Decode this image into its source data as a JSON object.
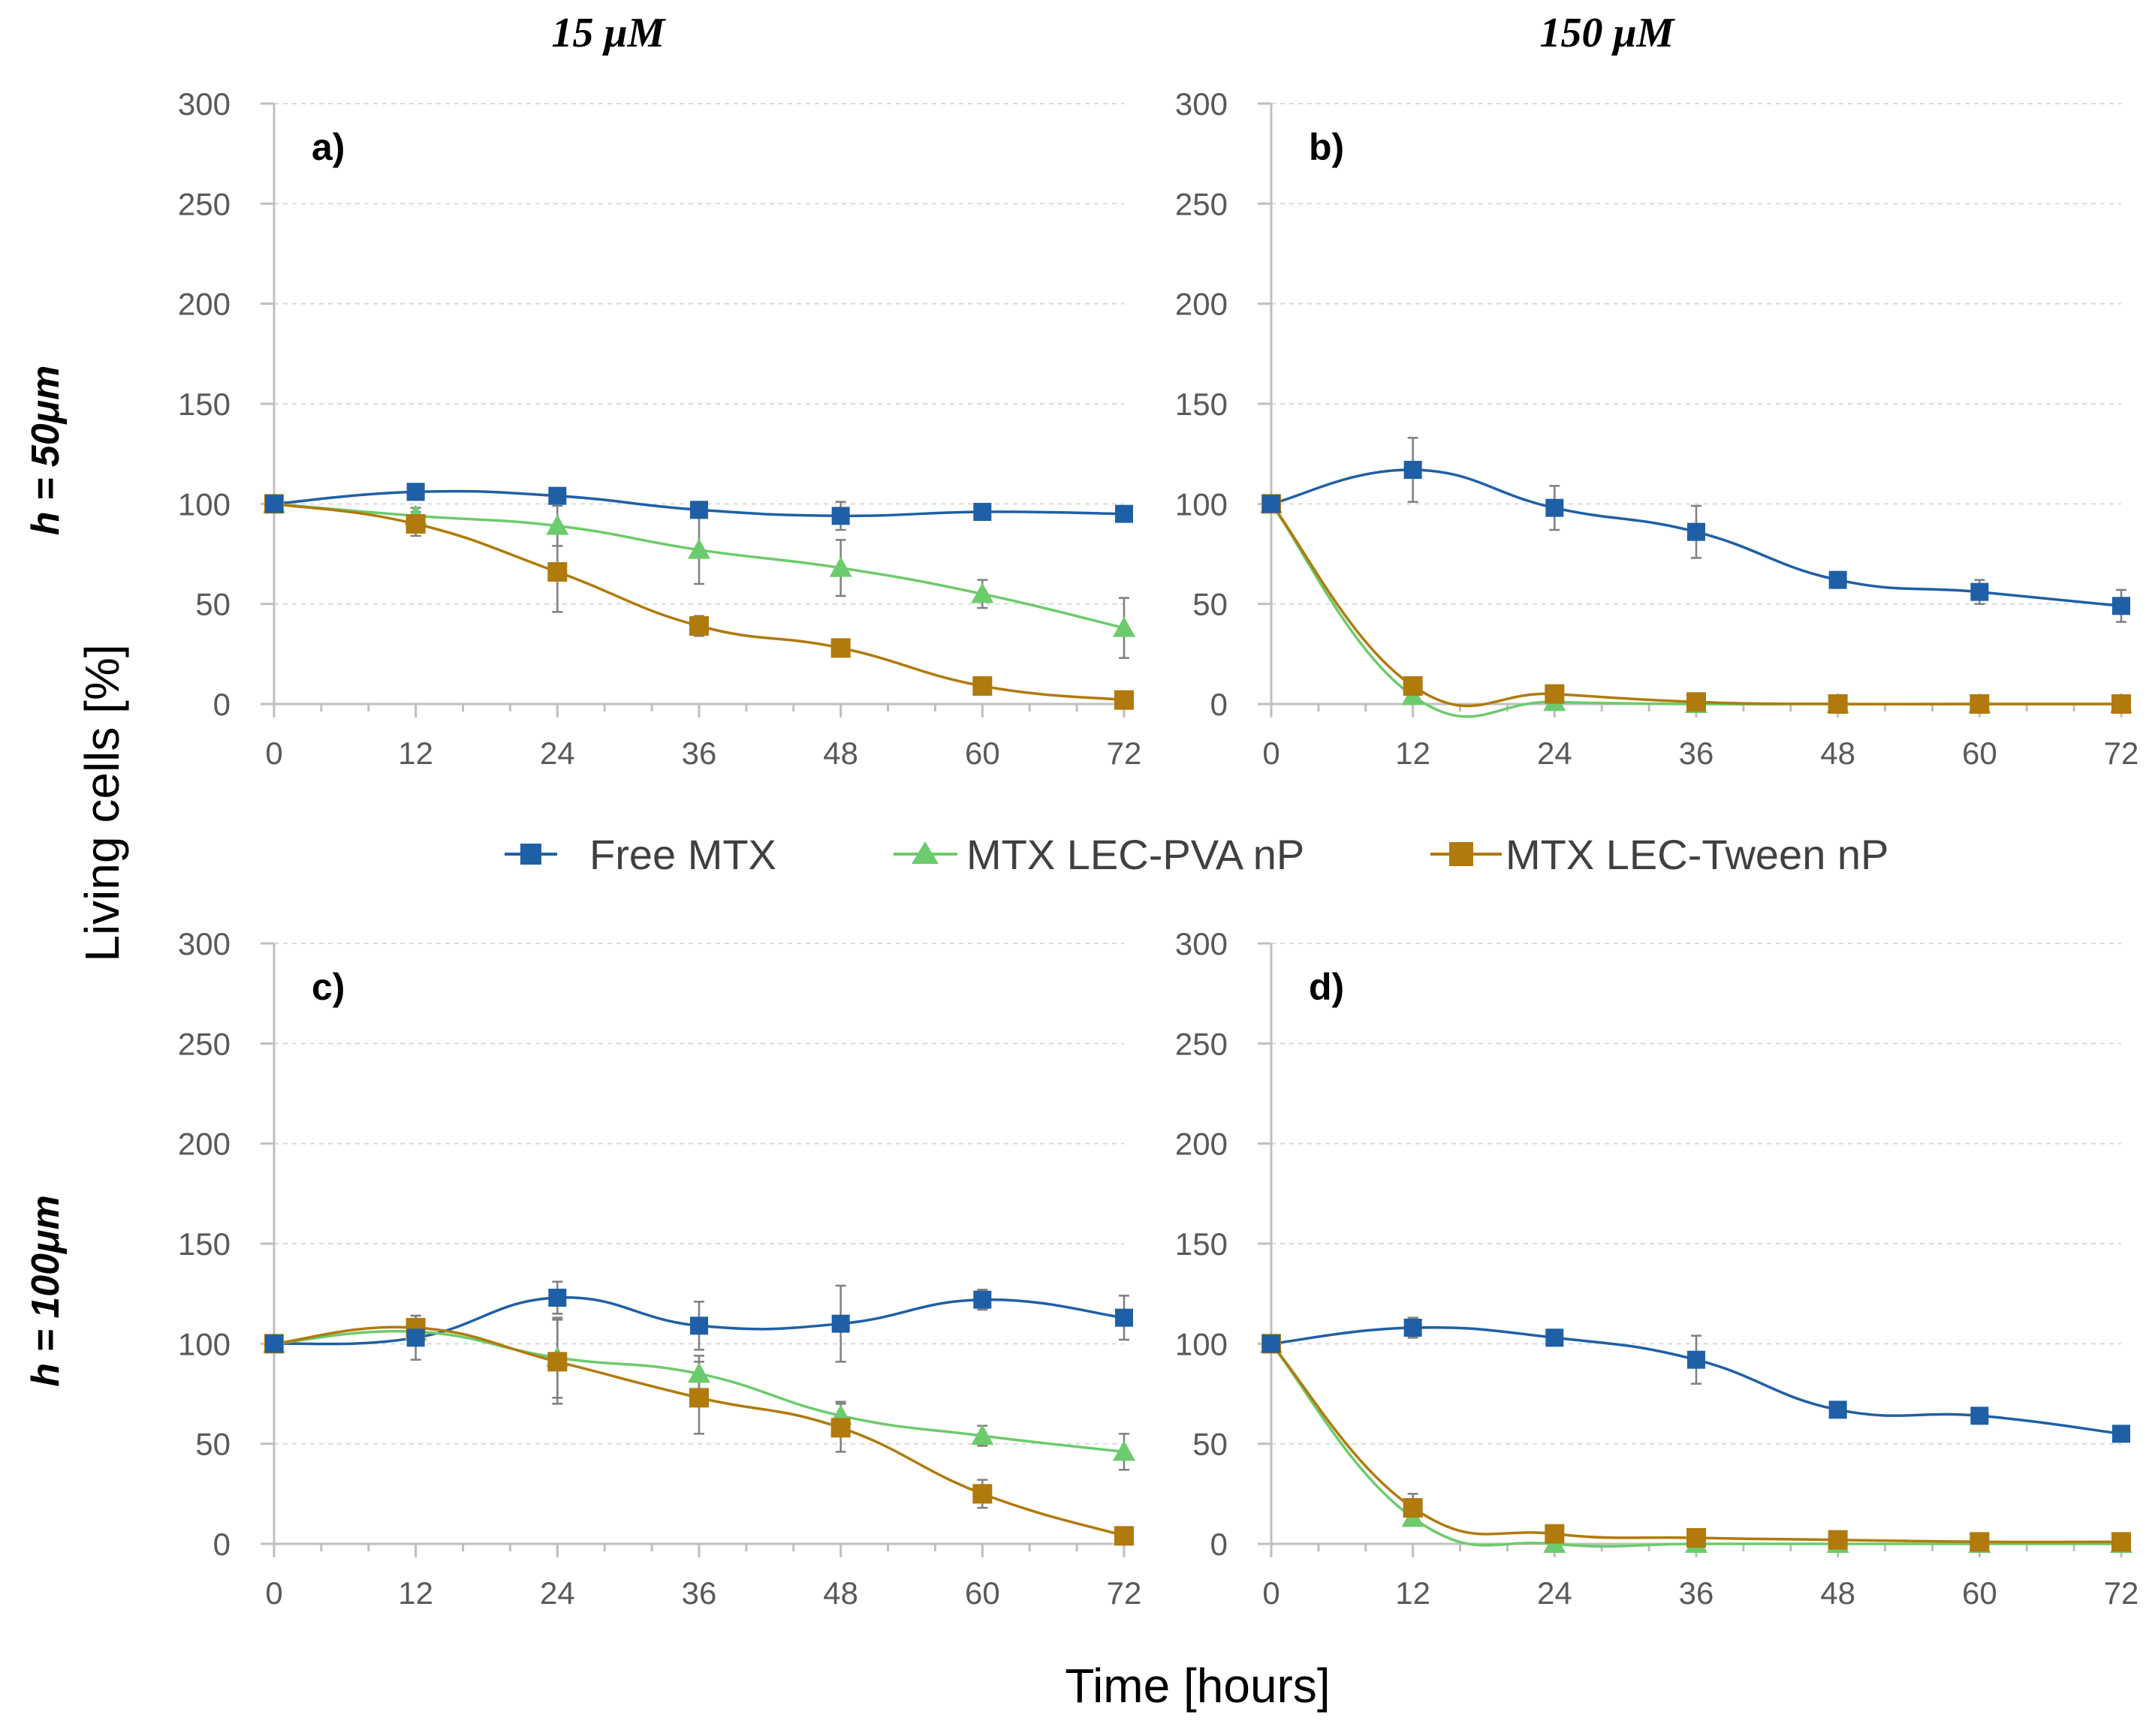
{
  "chart_data": {
    "type": "line",
    "y_axis_title": "Living cells [%]",
    "x_axis_title": "Time [hours]",
    "column_titles": [
      "15 μM",
      "150 μM"
    ],
    "row_titles": [
      "h = 50μm",
      "h = 100μm"
    ],
    "x_ticks": [
      "0",
      "12",
      "24",
      "36",
      "48",
      "60",
      "72"
    ],
    "y_ticks": [
      "0",
      "50",
      "100",
      "150",
      "200",
      "250",
      "300"
    ],
    "xlim": [
      0,
      72
    ],
    "ylim": [
      0,
      300
    ],
    "legend": [
      {
        "name": "Free MTX",
        "color": "#1f5fa6",
        "marker": "square"
      },
      {
        "name": "MTX LEC-PVA nP",
        "color": "#6ccb6c",
        "marker": "triangle"
      },
      {
        "name": "MTX LEC-Tween nP",
        "color": "#b07a0c",
        "marker": "square"
      }
    ],
    "panels": [
      {
        "label": "a)",
        "x": [
          0,
          12,
          24,
          36,
          48,
          60,
          72
        ],
        "series": [
          {
            "name": "Free MTX",
            "values": [
              100,
              106,
              104,
              97,
              94,
              96,
              95
            ],
            "errors": [
              0,
              3,
              3,
              4,
              7,
              3,
              2
            ]
          },
          {
            "name": "MTX LEC-PVA nP",
            "values": [
              100,
              94,
              89,
              77,
              68,
              55,
              38
            ],
            "errors": [
              0,
              4,
              10,
              17,
              14,
              7,
              15
            ]
          },
          {
            "name": "MTX LEC-Tween nP",
            "values": [
              100,
              90,
              66,
              39,
              28,
              9,
              2
            ],
            "errors": [
              0,
              6,
              20,
              5,
              3,
              2,
              1
            ]
          }
        ]
      },
      {
        "label": "b)",
        "x": [
          0,
          12,
          24,
          36,
          48,
          60,
          72
        ],
        "series": [
          {
            "name": "Free MTX",
            "values": [
              100,
              117,
              98,
              86,
              62,
              56,
              49
            ],
            "errors": [
              0,
              16,
              11,
              13,
              4,
              6,
              8
            ]
          },
          {
            "name": "MTX LEC-PVA nP",
            "values": [
              100,
              4,
              1,
              0,
              0,
              0,
              0
            ],
            "errors": [
              0,
              2,
              1,
              0,
              0,
              0,
              0
            ]
          },
          {
            "name": "MTX LEC-Tween nP",
            "values": [
              100,
              9,
              5,
              1,
              0,
              0,
              0
            ],
            "errors": [
              0,
              2,
              2,
              1,
              0,
              0,
              0
            ]
          }
        ]
      },
      {
        "label": "c)",
        "x": [
          0,
          12,
          24,
          36,
          48,
          60,
          72
        ],
        "series": [
          {
            "name": "Free MTX",
            "values": [
              100,
              103,
              123,
              109,
              110,
              122,
              113
            ],
            "errors": [
              0,
              11,
              8,
              12,
              19,
              5,
              11
            ]
          },
          {
            "name": "MTX LEC-PVA nP",
            "values": [
              100,
              106,
              93,
              85,
              64,
              54,
              46
            ],
            "errors": [
              0,
              5,
              20,
              9,
              7,
              5,
              9
            ]
          },
          {
            "name": "MTX LEC-Tween nP",
            "values": [
              100,
              108,
              91,
              73,
              58,
              25,
              4
            ],
            "errors": [
              0,
              6,
              21,
              18,
              12,
              7,
              2
            ]
          }
        ]
      },
      {
        "label": "d)",
        "x": [
          0,
          12,
          24,
          36,
          48,
          60,
          72
        ],
        "series": [
          {
            "name": "Free MTX",
            "values": [
              100,
              108,
              103,
              92,
              67,
              64,
              55
            ],
            "errors": [
              0,
              5,
              4,
              12,
              3,
              3,
              2
            ]
          },
          {
            "name": "MTX LEC-PVA nP",
            "values": [
              100,
              13,
              0,
              0,
              0,
              0,
              0
            ],
            "errors": [
              0,
              3,
              0,
              0,
              0,
              0,
              0
            ]
          },
          {
            "name": "MTX LEC-Tween nP",
            "values": [
              100,
              18,
              5,
              3,
              2,
              1,
              1
            ],
            "errors": [
              0,
              7,
              2,
              1,
              1,
              1,
              0
            ]
          }
        ]
      }
    ]
  }
}
